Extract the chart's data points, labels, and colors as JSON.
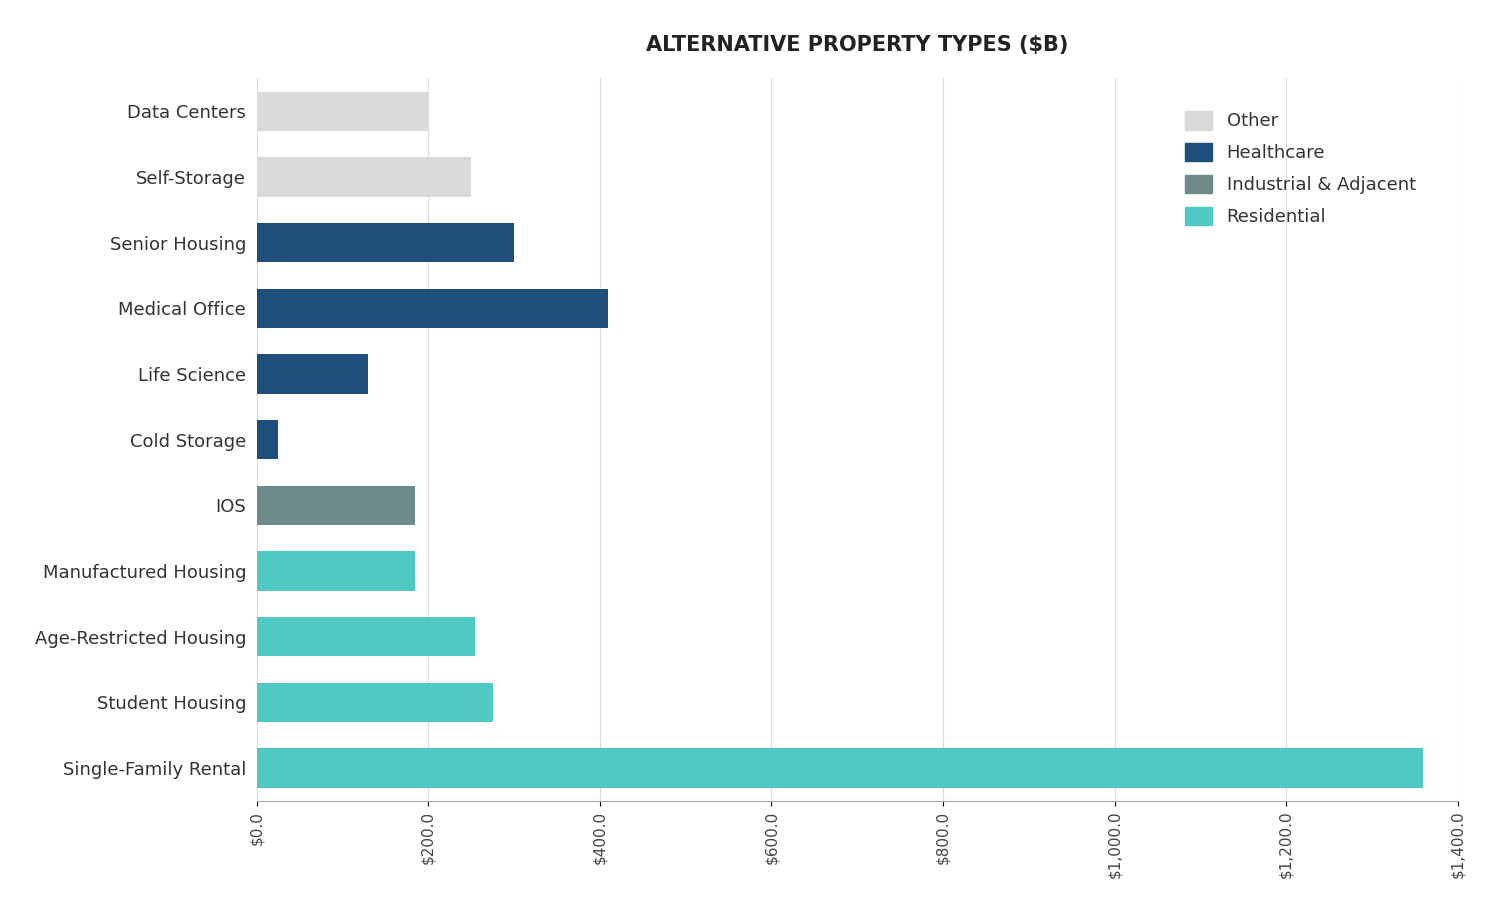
{
  "title": "ALTERNATIVE PROPERTY TYPES ($B)",
  "categories": [
    "Single-Family Rental",
    "Student Housing",
    "Age-Restricted Housing",
    "Manufactured Housing",
    "IOS",
    "Cold Storage",
    "Life Science",
    "Medical Office",
    "Senior Housing",
    "Self-Storage",
    "Data Centers"
  ],
  "values": [
    1360,
    275,
    255,
    185,
    185,
    25,
    130,
    410,
    300,
    250,
    200
  ],
  "colors": [
    "#4ec9c3",
    "#4ec9c3",
    "#4ec9c3",
    "#4ec9c3",
    "#6e8b8b",
    "#1e4f7a",
    "#1e4f7a",
    "#1e4f7a",
    "#1e4f7a",
    "#d9d9d9",
    "#d9d9d9"
  ],
  "legend_items": [
    {
      "label": "Other",
      "color": "#d9d9d9"
    },
    {
      "label": "Healthcare",
      "color": "#1e4f7a"
    },
    {
      "label": "Industrial & Adjacent",
      "color": "#6e8b8b"
    },
    {
      "label": "Residential",
      "color": "#4ec9c3"
    }
  ],
  "xlim": [
    0,
    1400
  ],
  "xtick_values": [
    0,
    200,
    400,
    600,
    800,
    1000,
    1200,
    1400
  ],
  "background_color": "#ffffff",
  "title_fontsize": 15,
  "label_fontsize": 13,
  "tick_fontsize": 11
}
